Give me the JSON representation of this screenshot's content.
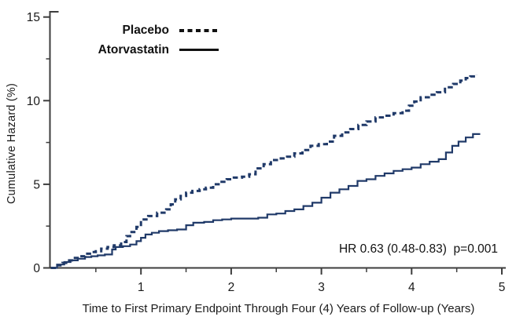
{
  "chart_data": {
    "type": "line",
    "subtype": "step-cumulative-hazard",
    "title": "",
    "xlabel": "Time to First Primary Endpoint Through Four (4) Years of Follow-up (Years)",
    "ylabel": "Cumulative Hazard (%)",
    "xlim": [
      0,
      5
    ],
    "ylim": [
      0,
      15
    ],
    "x_major_ticks": [
      1,
      2,
      3,
      4,
      5
    ],
    "x_minor_ticks": [
      0.5,
      1.5,
      2.5,
      3.5,
      4.5
    ],
    "y_major_ticks": [
      0,
      5,
      10,
      15
    ],
    "y_minor_ticks": [
      2.5,
      7.5,
      12.5
    ],
    "grid": false,
    "legend_position": "top-left-inside",
    "annotation": "HR 0.63 (0.48-0.83)  p=0.001",
    "legend": [
      {
        "label": "Placebo",
        "style": "dashed"
      },
      {
        "label": "Atorvastatin",
        "style": "solid"
      }
    ],
    "axis_color": "#3d3d3d",
    "series": [
      {
        "name": "Placebo",
        "style": "dashed",
        "color": "#203a69",
        "points": [
          [
            0,
            0
          ],
          [
            0.06,
            0.15
          ],
          [
            0.13,
            0.3
          ],
          [
            0.19,
            0.45
          ],
          [
            0.25,
            0.6
          ],
          [
            0.32,
            0.7
          ],
          [
            0.38,
            0.85
          ],
          [
            0.45,
            0.95
          ],
          [
            0.5,
            1.0
          ],
          [
            0.56,
            1.15
          ],
          [
            0.63,
            1.25
          ],
          [
            0.7,
            1.35
          ],
          [
            0.78,
            1.55
          ],
          [
            0.84,
            1.9
          ],
          [
            0.88,
            2.15
          ],
          [
            0.95,
            2.45
          ],
          [
            1.0,
            2.9
          ],
          [
            1.08,
            3.1
          ],
          [
            1.18,
            3.3
          ],
          [
            1.28,
            3.5
          ],
          [
            1.33,
            3.8
          ],
          [
            1.38,
            4.1
          ],
          [
            1.44,
            4.3
          ],
          [
            1.5,
            4.5
          ],
          [
            1.57,
            4.6
          ],
          [
            1.65,
            4.7
          ],
          [
            1.72,
            4.8
          ],
          [
            1.8,
            5.0
          ],
          [
            1.88,
            5.15
          ],
          [
            1.95,
            5.3
          ],
          [
            2.03,
            5.4
          ],
          [
            2.12,
            5.45
          ],
          [
            2.2,
            5.6
          ],
          [
            2.27,
            5.95
          ],
          [
            2.36,
            6.2
          ],
          [
            2.44,
            6.45
          ],
          [
            2.55,
            6.55
          ],
          [
            2.62,
            6.65
          ],
          [
            2.7,
            6.85
          ],
          [
            2.79,
            7.05
          ],
          [
            2.88,
            7.3
          ],
          [
            2.97,
            7.4
          ],
          [
            3.06,
            7.55
          ],
          [
            3.14,
            7.9
          ],
          [
            3.23,
            8.1
          ],
          [
            3.32,
            8.3
          ],
          [
            3.41,
            8.55
          ],
          [
            3.5,
            8.75
          ],
          [
            3.6,
            9.0
          ],
          [
            3.7,
            9.1
          ],
          [
            3.8,
            9.25
          ],
          [
            3.9,
            9.4
          ],
          [
            3.97,
            9.7
          ],
          [
            4.03,
            9.95
          ],
          [
            4.1,
            10.2
          ],
          [
            4.19,
            10.35
          ],
          [
            4.28,
            10.5
          ],
          [
            4.37,
            10.8
          ],
          [
            4.46,
            11.0
          ],
          [
            4.54,
            11.2
          ],
          [
            4.6,
            11.35
          ],
          [
            4.65,
            11.45
          ],
          [
            4.72,
            11.55
          ]
        ]
      },
      {
        "name": "Atorvastatin",
        "style": "solid",
        "color": "#203a69",
        "points": [
          [
            0,
            0
          ],
          [
            0.07,
            0.2
          ],
          [
            0.15,
            0.35
          ],
          [
            0.22,
            0.45
          ],
          [
            0.3,
            0.55
          ],
          [
            0.38,
            0.65
          ],
          [
            0.45,
            0.7
          ],
          [
            0.52,
            0.75
          ],
          [
            0.6,
            0.8
          ],
          [
            0.68,
            1.1
          ],
          [
            0.72,
            1.25
          ],
          [
            0.8,
            1.3
          ],
          [
            0.88,
            1.4
          ],
          [
            0.95,
            1.6
          ],
          [
            1.0,
            1.8
          ],
          [
            1.05,
            2.0
          ],
          [
            1.12,
            2.1
          ],
          [
            1.2,
            2.2
          ],
          [
            1.3,
            2.25
          ],
          [
            1.4,
            2.3
          ],
          [
            1.5,
            2.55
          ],
          [
            1.58,
            2.7
          ],
          [
            1.7,
            2.75
          ],
          [
            1.8,
            2.85
          ],
          [
            1.9,
            2.9
          ],
          [
            2.0,
            2.95
          ],
          [
            2.3,
            3.0
          ],
          [
            2.4,
            3.2
          ],
          [
            2.5,
            3.25
          ],
          [
            2.6,
            3.4
          ],
          [
            2.7,
            3.5
          ],
          [
            2.8,
            3.7
          ],
          [
            2.9,
            3.9
          ],
          [
            3.0,
            4.2
          ],
          [
            3.1,
            4.5
          ],
          [
            3.2,
            4.7
          ],
          [
            3.3,
            4.9
          ],
          [
            3.4,
            5.2
          ],
          [
            3.5,
            5.3
          ],
          [
            3.6,
            5.5
          ],
          [
            3.7,
            5.65
          ],
          [
            3.8,
            5.8
          ],
          [
            3.9,
            5.9
          ],
          [
            4.0,
            6.0
          ],
          [
            4.1,
            6.2
          ],
          [
            4.2,
            6.35
          ],
          [
            4.3,
            6.5
          ],
          [
            4.38,
            6.9
          ],
          [
            4.45,
            7.3
          ],
          [
            4.52,
            7.55
          ],
          [
            4.6,
            7.8
          ],
          [
            4.68,
            8.0
          ],
          [
            4.76,
            8.0
          ]
        ]
      }
    ]
  }
}
